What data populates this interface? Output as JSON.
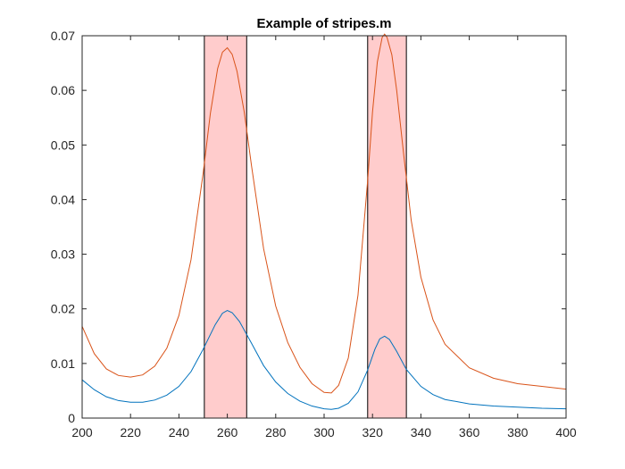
{
  "chart_data": {
    "type": "line",
    "title": "Example of stripes.m",
    "xlabel": "",
    "ylabel": "",
    "xlim": [
      200,
      400
    ],
    "ylim": [
      0,
      0.07
    ],
    "x_ticks": [
      200,
      220,
      240,
      260,
      280,
      300,
      320,
      340,
      360,
      380,
      400
    ],
    "y_ticks": [
      0,
      0.01,
      0.02,
      0.03,
      0.04,
      0.05,
      0.06,
      0.07
    ],
    "y_tick_labels": [
      "0",
      "0.01",
      "0.02",
      "0.03",
      "0.04",
      "0.05",
      "0.06",
      "0.07"
    ],
    "grid": false,
    "stripes": [
      {
        "x_start": 250.5,
        "x_end": 268,
        "fill": "#ffcccc"
      },
      {
        "x_start": 318,
        "x_end": 334,
        "fill": "#ffcccc"
      }
    ],
    "series": [
      {
        "color": "#0072bd",
        "x": [
          200,
          205,
          210,
          215,
          220,
          225,
          230,
          235,
          240,
          245,
          250,
          255,
          258,
          260,
          262,
          265,
          270,
          275,
          280,
          285,
          290,
          295,
          300,
          303,
          306,
          310,
          314,
          318,
          321,
          323,
          325,
          327,
          330,
          334,
          340,
          345,
          350,
          360,
          370,
          380,
          390,
          400
        ],
        "y": [
          0.007,
          0.0052,
          0.0039,
          0.0032,
          0.0029,
          0.0029,
          0.0033,
          0.0042,
          0.0058,
          0.0085,
          0.0126,
          0.0171,
          0.0192,
          0.0197,
          0.0193,
          0.0177,
          0.0137,
          0.0096,
          0.0066,
          0.0045,
          0.0031,
          0.0022,
          0.0017,
          0.0016,
          0.0018,
          0.0027,
          0.0048,
          0.0088,
          0.0126,
          0.0145,
          0.015,
          0.0144,
          0.0122,
          0.0089,
          0.0058,
          0.0043,
          0.0034,
          0.0026,
          0.0022,
          0.002,
          0.0018,
          0.0017
        ]
      },
      {
        "color": "#d95319",
        "x": [
          200,
          205,
          210,
          215,
          220,
          225,
          230,
          235,
          240,
          245,
          250,
          253,
          256,
          258,
          260,
          262,
          264,
          267,
          270,
          275,
          280,
          285,
          290,
          295,
          300,
          303,
          306,
          310,
          314,
          318,
          320,
          322,
          324,
          325,
          326,
          328,
          330,
          333,
          336,
          340,
          345,
          350,
          360,
          370,
          380,
          390,
          400
        ],
        "y": [
          0.0168,
          0.0118,
          0.009,
          0.0078,
          0.0075,
          0.0079,
          0.0095,
          0.0128,
          0.0188,
          0.029,
          0.0448,
          0.0558,
          0.064,
          0.067,
          0.0678,
          0.0666,
          0.0635,
          0.056,
          0.0462,
          0.031,
          0.0205,
          0.0138,
          0.0093,
          0.0063,
          0.0047,
          0.0046,
          0.006,
          0.011,
          0.0225,
          0.0435,
          0.056,
          0.0652,
          0.0697,
          0.0703,
          0.0697,
          0.0665,
          0.06,
          0.0478,
          0.0362,
          0.0258,
          0.018,
          0.0135,
          0.0092,
          0.0073,
          0.0063,
          0.0058,
          0.0053
        ]
      }
    ]
  }
}
